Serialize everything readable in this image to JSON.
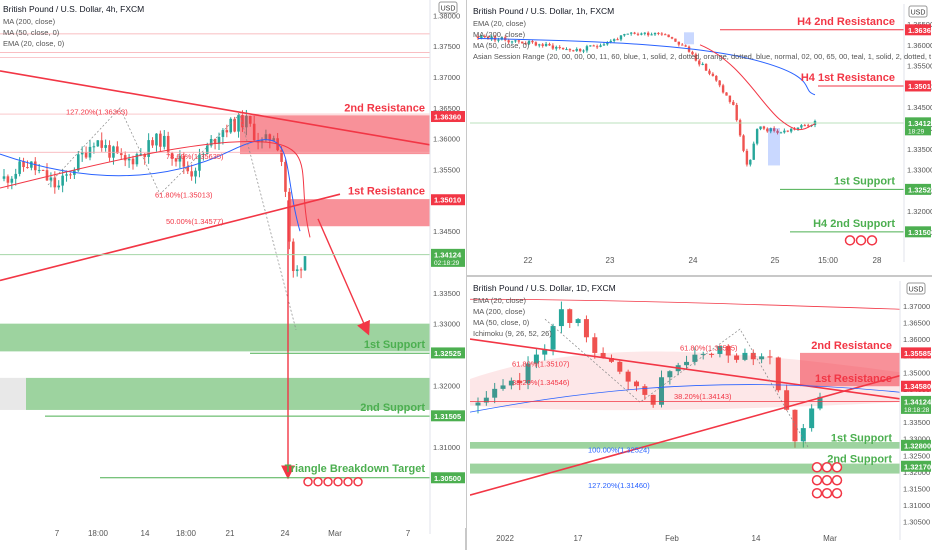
{
  "chart_data": [
    {
      "type": "candlestick",
      "title": "British Pound / U.S. Dollar, 4h, FXCM",
      "indicators": [
        "MA (200, close)",
        "MA (50, close, 0)",
        "EMA (20, close, 0)"
      ],
      "currency": "USD",
      "ylim": [
        1.2975,
        1.3825
      ],
      "y_ticks": [
        1.305,
        1.31,
        1.315,
        1.32,
        1.325,
        1.33,
        1.335,
        1.34,
        1.345,
        1.35,
        1.355,
        1.36,
        1.365,
        1.37,
        1.375,
        1.38
      ],
      "x_ticks": [
        "7",
        "18:00",
        "14",
        "18:00",
        "21",
        "24",
        "Mar",
        "7"
      ],
      "price_tags": [
        {
          "value": 1.3636,
          "label": "1.36360",
          "color": "#f23645"
        },
        {
          "value": 1.3501,
          "label": "1.35010",
          "color": "#f23645"
        },
        {
          "value": 1.34124,
          "label": "1.34124",
          "sub": "02:18:29",
          "color": "#4caf50"
        },
        {
          "value": 1.32525,
          "label": "1.32525",
          "color": "#4caf50"
        },
        {
          "value": 1.31505,
          "label": "1.31505",
          "color": "#4caf50"
        },
        {
          "value": 1.305,
          "label": "1.30500",
          "color": "#4caf50"
        }
      ],
      "levels": [
        {
          "label": "2nd Resistance",
          "value": 1.3636,
          "color": "#f23645"
        },
        {
          "label": "1st Resistance",
          "value": 1.3501,
          "color": "#f23645"
        },
        {
          "label": "1st Support",
          "value": 1.32525,
          "color": "#4caf50"
        },
        {
          "label": "2nd Support",
          "value": 1.31505,
          "color": "#4caf50"
        },
        {
          "label": "Triangle Breakdown Target",
          "value": 1.305,
          "color": "#4caf50"
        }
      ],
      "fib_labels": [
        {
          "text": "127.20%(1.36363)",
          "value": 1.3636
        },
        {
          "text": "78.60%(1.35635)",
          "value": 1.3564
        },
        {
          "text": "61.80%(1.35013)",
          "value": 1.3501
        },
        {
          "text": "50.00%(1.34577)",
          "value": 1.3458
        }
      ]
    },
    {
      "type": "candlestick",
      "title": "British Pound / U.S. Dollar, 1h, FXCM",
      "indicators": [
        "EMA (20, close)",
        "MA (200, close)",
        "MA (50, close, 0)",
        "Asian Session Range (20, 00, 00, 00, 11, 60, blue, 1, solid, 2, dotted, orange, dotted, blue, normal, 02, 00, 65, 00, teal, 1, solid, 2, dotted, t"
      ],
      "currency": "USD",
      "ylim": [
        1.3102,
        1.3698
      ],
      "y_ticks": [
        1.315,
        1.32,
        1.325,
        1.33,
        1.335,
        1.34,
        1.345,
        1.35,
        1.355,
        1.36,
        1.365
      ],
      "x_ticks": [
        "22",
        "23",
        "24",
        "25",
        "15:00",
        "28"
      ],
      "price_tags": [
        {
          "value": 1.3636,
          "label": "1.36360",
          "color": "#f23645"
        },
        {
          "value": 1.3501,
          "label": "1.35010",
          "color": "#f23645"
        },
        {
          "value": 1.34124,
          "label": "1.34124",
          "sub": "18:29",
          "color": "#4caf50"
        },
        {
          "value": 1.32525,
          "label": "1.32525",
          "color": "#4caf50"
        },
        {
          "value": 1.31505,
          "label": "1.31505",
          "color": "#4caf50"
        }
      ],
      "levels": [
        {
          "label": "H4 2nd Resistance",
          "value": 1.3636,
          "color": "#f23645"
        },
        {
          "label": "H4 1st Resistance",
          "value": 1.3501,
          "color": "#f23645"
        },
        {
          "label": "1st Support",
          "value": 1.32525,
          "color": "#4caf50"
        },
        {
          "label": "H4 2nd Support",
          "value": 1.31505,
          "color": "#4caf50"
        }
      ]
    },
    {
      "type": "candlestick",
      "title": "British Pound / U.S. Dollar, 1D, FXCM",
      "indicators": [
        "EMA (20, close)",
        "MA (200, close)",
        "MA (50, close, 0)",
        "Ichimoku (9, 26, 52, 26)"
      ],
      "currency": "USD",
      "ylim": [
        1.3025,
        1.3775
      ],
      "y_ticks": [
        1.305,
        1.31,
        1.315,
        1.32,
        1.325,
        1.33,
        1.335,
        1.34,
        1.345,
        1.35,
        1.355,
        1.36,
        1.365,
        1.37
      ],
      "x_ticks": [
        "2022",
        "17",
        "Feb",
        "14",
        "Mar"
      ],
      "price_tags": [
        {
          "value": 1.35585,
          "label": "1.35585",
          "color": "#f23645"
        },
        {
          "value": 1.3458,
          "label": "1.34580",
          "color": "#f23645"
        },
        {
          "value": 1.34124,
          "label": "1.34124",
          "sub": "18:18:28",
          "color": "#4caf50"
        },
        {
          "value": 1.328,
          "label": "1.32800",
          "color": "#4caf50"
        },
        {
          "value": 1.3217,
          "label": "1.32170",
          "color": "#4caf50"
        }
      ],
      "levels": [
        {
          "label": "2nd Resistance",
          "value": 1.35585,
          "color": "#f23645"
        },
        {
          "label": "1st Resistance",
          "value": 1.3458,
          "color": "#f23645"
        },
        {
          "label": "1st Support",
          "value": 1.328,
          "color": "#4caf50"
        },
        {
          "label": "2nd Support",
          "value": 1.3217,
          "color": "#4caf50"
        }
      ],
      "fib_labels": [
        {
          "text": "61.80%(1.35107)",
          "value": 1.3511
        },
        {
          "text": "38.20%(1.34546)",
          "value": 1.3455
        },
        {
          "text": "38.20%(1.34143)",
          "value": 1.3414
        },
        {
          "text": "61.80%(1.35585)",
          "value": 1.3559
        },
        {
          "text": "100.00%(1.32524)",
          "value": 1.3252
        },
        {
          "text": "127.20%(1.31460)",
          "value": 1.3146
        }
      ]
    }
  ]
}
